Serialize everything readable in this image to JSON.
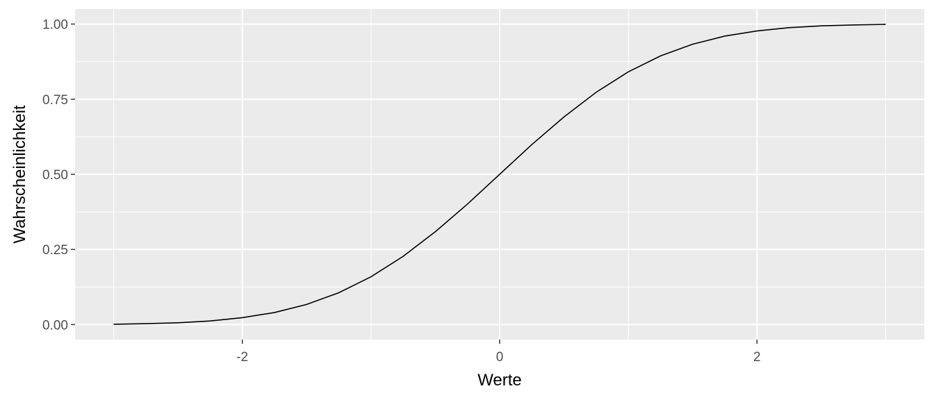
{
  "chart_data": {
    "type": "line",
    "title": "",
    "xlabel": "Werte",
    "ylabel": "Wahrscheinlichkeit",
    "xlim": [
      -3.3,
      3.3
    ],
    "ylim": [
      -0.05,
      1.05
    ],
    "x_ticks": [
      -2,
      0,
      2
    ],
    "x_tick_labels": [
      "-2",
      "0",
      "2"
    ],
    "y_ticks": [
      0,
      0.25,
      0.5,
      0.75,
      1
    ],
    "y_tick_labels": [
      "0.00",
      "0.25",
      "0.50",
      "0.75",
      "1.00"
    ],
    "x_minor_ticks": [
      -3,
      -1,
      1,
      3
    ],
    "y_minor_ticks": [
      0.125,
      0.375,
      0.625,
      0.875
    ],
    "grid": true,
    "colors": {
      "panel": "#EBEBEB",
      "grid": "#FFFFFF",
      "line": "#000000",
      "tick": "#333333"
    },
    "series": [
      {
        "x": [
          -3,
          -2.75,
          -2.5,
          -2.25,
          -2,
          -1.75,
          -1.5,
          -1.25,
          -1,
          -0.75,
          -0.5,
          -0.25,
          0,
          0.25,
          0.5,
          0.75,
          1,
          1.25,
          1.5,
          1.75,
          2,
          2.25,
          2.5,
          2.75,
          3
        ],
        "values": [
          0.001,
          0.003,
          0.006,
          0.012,
          0.023,
          0.04,
          0.067,
          0.106,
          0.159,
          0.227,
          0.309,
          0.401,
          0.5,
          0.599,
          0.691,
          0.773,
          0.841,
          0.894,
          0.933,
          0.96,
          0.977,
          0.988,
          0.994,
          0.997,
          0.999
        ]
      }
    ]
  }
}
